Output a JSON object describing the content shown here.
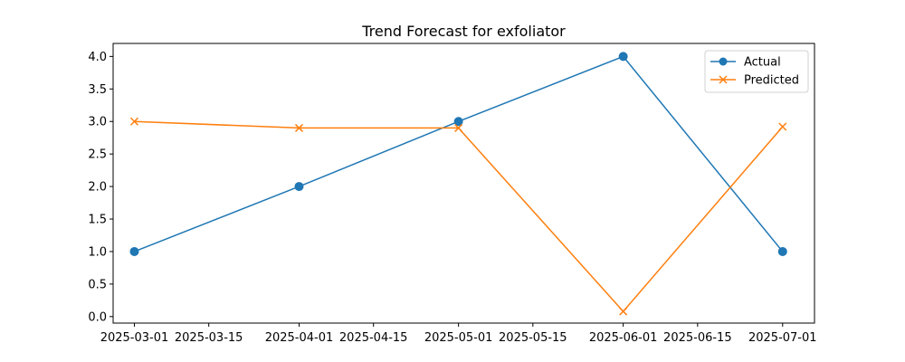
{
  "chart_data": {
    "type": "line",
    "title": "Trend Forecast for exfoliator",
    "xlabel": "",
    "ylabel": "",
    "x_ticks": [
      "2025-03-01",
      "2025-03-15",
      "2025-04-01",
      "2025-04-15",
      "2025-05-01",
      "2025-05-15",
      "2025-06-01",
      "2025-06-15",
      "2025-07-01"
    ],
    "y_ticks": [
      "0.0",
      "0.5",
      "1.0",
      "1.5",
      "2.0",
      "2.5",
      "3.0",
      "3.5",
      "4.0"
    ],
    "xlim": [
      "2025-02-25",
      "2025-07-07"
    ],
    "ylim": [
      -0.1,
      4.2
    ],
    "grid": false,
    "legend_position": "top-right",
    "series": [
      {
        "name": "Actual",
        "color": "#1f77b4",
        "marker": "circle",
        "x": [
          "2025-03-01",
          "2025-04-01",
          "2025-05-01",
          "2025-06-01",
          "2025-07-01"
        ],
        "values": [
          1,
          2,
          3,
          4,
          1
        ]
      },
      {
        "name": "Predicted",
        "color": "#ff7f0e",
        "marker": "x",
        "x": [
          "2025-03-01",
          "2025-04-01",
          "2025-05-01",
          "2025-06-01",
          "2025-07-01"
        ],
        "values": [
          3.0,
          2.9,
          2.9,
          0.08,
          2.92
        ]
      }
    ]
  }
}
